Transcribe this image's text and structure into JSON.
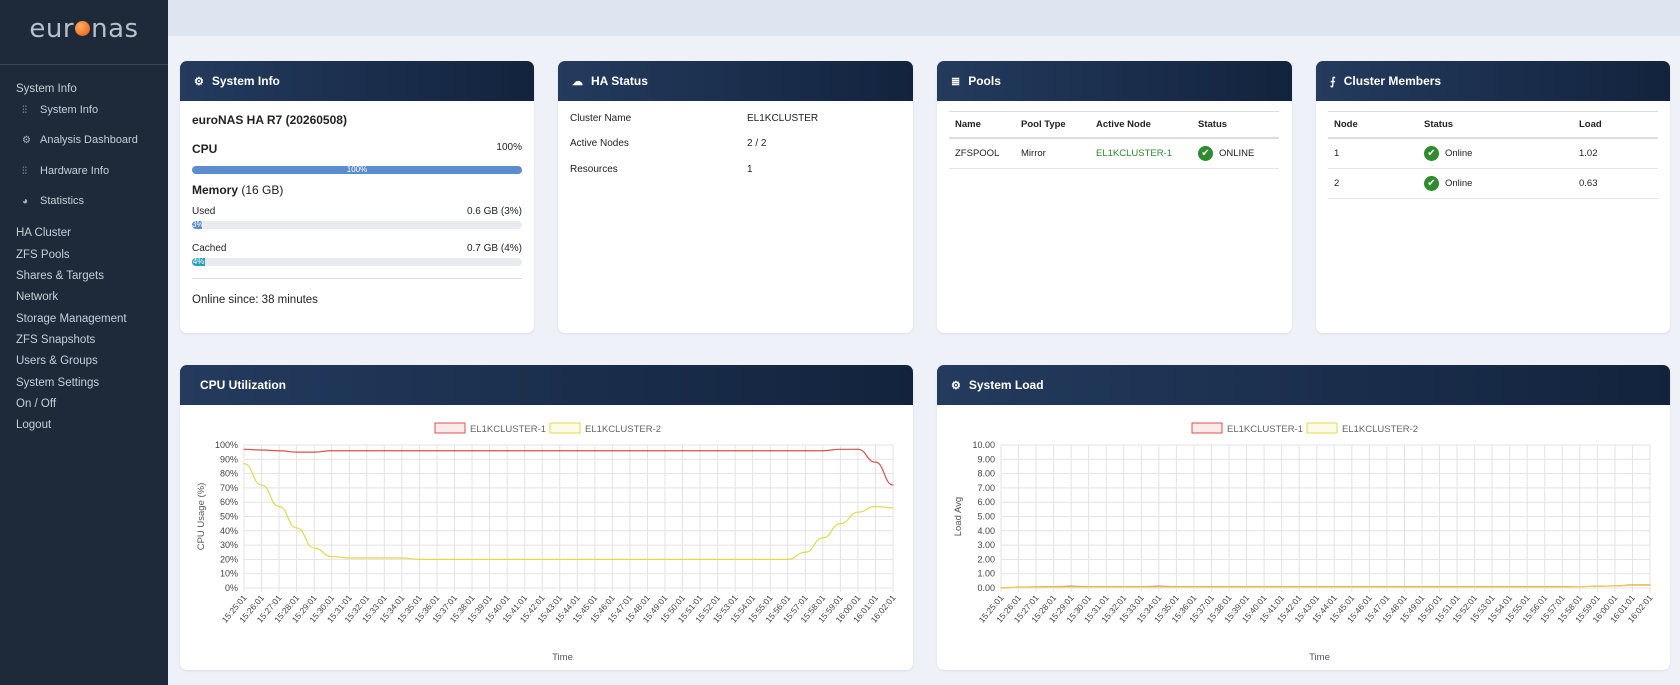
{
  "sidebar": {
    "logo_left": "eur",
    "logo_right": "nas",
    "menu": [
      {
        "label": "System Info"
      },
      {
        "label": "HA Cluster"
      },
      {
        "label": "ZFS Pools"
      },
      {
        "label": "Shares & Targets"
      },
      {
        "label": "Network"
      },
      {
        "label": "Storage Management"
      },
      {
        "label": "ZFS Snapshots"
      },
      {
        "label": "Users & Groups"
      },
      {
        "label": "System Settings"
      },
      {
        "label": "On / Off"
      },
      {
        "label": "Logout"
      }
    ],
    "submenu": [
      {
        "label": "System Info",
        "icon": "sliders-icon"
      },
      {
        "label": "Analysis Dashboard",
        "icon": "gear-icon"
      },
      {
        "label": "Hardware Info",
        "icon": "sliders-icon"
      },
      {
        "label": "Statistics",
        "icon": "pie-chart-icon"
      }
    ]
  },
  "system_info": {
    "title": "System Info",
    "product": "euroNAS HA R7 (20260508)",
    "cpu_label": "CPU",
    "cpu_value": "100%",
    "cpu_bar": "100%",
    "cpu_fraction": 1.0,
    "memory_label": "Memory",
    "memory_total": "(16 GB)",
    "used_label": "Used",
    "used_value": "0.6 GB (3%)",
    "used_bar": "3%",
    "used_fraction": 0.03,
    "cached_label": "Cached",
    "cached_value": "0.7 GB (4%)",
    "cached_bar": "4%",
    "cached_fraction": 0.04,
    "online_since": "Online since: 38 minutes"
  },
  "ha_status": {
    "title": "HA Status",
    "rows": [
      {
        "label": "Cluster Name",
        "value": "EL1KCLUSTER"
      },
      {
        "label": "Active Nodes",
        "value": "2 / 2"
      },
      {
        "label": "Resources",
        "value": "1"
      }
    ]
  },
  "pools": {
    "title": "Pools",
    "headers": [
      "Name",
      "Pool Type",
      "Active Node",
      "Status"
    ],
    "rows": [
      {
        "name": "ZFSPOOL",
        "type": "Mirror",
        "node": "EL1KCLUSTER-1",
        "status": "ONLINE"
      }
    ]
  },
  "cluster_members": {
    "title": "Cluster Members",
    "headers": [
      "Node",
      "Status",
      "Load"
    ],
    "rows": [
      {
        "node": "1",
        "status": "Online",
        "load": "1.02"
      },
      {
        "node": "2",
        "status": "Online",
        "load": "0.63"
      }
    ]
  },
  "cpu_card": {
    "title": "CPU Utilization"
  },
  "load_card": {
    "title": "System Load"
  },
  "colors": {
    "accent": "#243b5e",
    "series1": "#d9534f",
    "series2": "#e6d84a",
    "online": "#2e8b2e",
    "cpu_bar": "#5b8ccc",
    "mem_bar": "#2aa0b8"
  },
  "chart_data": [
    {
      "type": "line",
      "ylabel": "CPU Usage (%)",
      "xlabel": "Time",
      "ylim": [
        0,
        100
      ],
      "yticks": [
        "0%",
        "10%",
        "20%",
        "30%",
        "40%",
        "50%",
        "60%",
        "70%",
        "80%",
        "90%",
        "100%"
      ],
      "x": [
        "15:25:01",
        "15:26:01",
        "15:27:01",
        "15:28:01",
        "15:29:01",
        "15:30:01",
        "15:31:01",
        "15:32:01",
        "15:33:01",
        "15:34:01",
        "15:35:01",
        "15:36:01",
        "15:37:01",
        "15:38:01",
        "15:39:01",
        "15:40:01",
        "15:41:01",
        "15:42:01",
        "15:43:01",
        "15:44:01",
        "15:45:01",
        "15:46:01",
        "15:47:01",
        "15:48:01",
        "15:49:01",
        "15:50:01",
        "15:51:01",
        "15:52:01",
        "15:53:01",
        "15:54:01",
        "15:55:01",
        "15:56:01",
        "15:57:01",
        "15:58:01",
        "15:59:01",
        "16:00:01",
        "16:01:01",
        "16:02:01"
      ],
      "legend": "top",
      "grid": true,
      "series": [
        {
          "name": "EL1KCLUSTER-1",
          "values": [
            97,
            96.5,
            96,
            95,
            95,
            96,
            96,
            96,
            96,
            96,
            96,
            96,
            96,
            96,
            96,
            96,
            96,
            96,
            96,
            96,
            96,
            96,
            96,
            96,
            96,
            96,
            96,
            96,
            96,
            96,
            96,
            96,
            96,
            96,
            97,
            97,
            88,
            72
          ]
        },
        {
          "name": "EL1KCLUSTER-2",
          "values": [
            87,
            72,
            57,
            42,
            28,
            22,
            21,
            21,
            21,
            21,
            20,
            20,
            20,
            20,
            20,
            20,
            20,
            20,
            20,
            20,
            20,
            20,
            20,
            20,
            20,
            20,
            20,
            20,
            20,
            20,
            20,
            20,
            25,
            35,
            45,
            53,
            57,
            56
          ]
        }
      ]
    },
    {
      "type": "line",
      "ylabel": "Load Avg",
      "xlabel": "Time",
      "ylim": [
        0,
        10
      ],
      "yticks": [
        "0.00",
        "1.00",
        "2.00",
        "3.00",
        "4.00",
        "5.00",
        "6.00",
        "7.00",
        "8.00",
        "9.00",
        "10.00"
      ],
      "x": [
        "15:25:01",
        "15:26:01",
        "15:27:01",
        "15:28:01",
        "15:29:01",
        "15:30:01",
        "15:31:01",
        "15:32:01",
        "15:33:01",
        "15:34:01",
        "15:35:01",
        "15:36:01",
        "15:37:01",
        "15:38:01",
        "15:39:01",
        "15:40:01",
        "15:41:01",
        "15:42:01",
        "15:43:01",
        "15:44:01",
        "15:45:01",
        "15:46:01",
        "15:47:01",
        "15:48:01",
        "15:49:01",
        "15:50:01",
        "15:51:01",
        "15:52:01",
        "15:53:01",
        "15:54:01",
        "15:55:01",
        "15:56:01",
        "15:57:01",
        "15:58:01",
        "15:59:01",
        "16:00:01",
        "16:01:01",
        "16:02:01"
      ],
      "legend": "top",
      "grid": true,
      "series": [
        {
          "name": "EL1KCLUSTER-1",
          "values": [
            0.02,
            0.05,
            0.08,
            0.1,
            0.12,
            0.1,
            0.1,
            0.1,
            0.1,
            0.12,
            0.1,
            0.1,
            0.1,
            0.1,
            0.1,
            0.1,
            0.1,
            0.1,
            0.1,
            0.1,
            0.1,
            0.1,
            0.1,
            0.1,
            0.1,
            0.1,
            0.1,
            0.1,
            0.1,
            0.1,
            0.1,
            0.1,
            0.1,
            0.1,
            0.12,
            0.15,
            0.2,
            0.2
          ]
        },
        {
          "name": "EL1KCLUSTER-2",
          "values": [
            0.02,
            0.04,
            0.06,
            0.08,
            0.08,
            0.08,
            0.08,
            0.08,
            0.08,
            0.08,
            0.08,
            0.08,
            0.08,
            0.08,
            0.08,
            0.08,
            0.08,
            0.08,
            0.08,
            0.08,
            0.08,
            0.08,
            0.08,
            0.08,
            0.08,
            0.08,
            0.08,
            0.08,
            0.08,
            0.08,
            0.08,
            0.08,
            0.08,
            0.1,
            0.12,
            0.15,
            0.18,
            0.18
          ]
        }
      ]
    }
  ]
}
